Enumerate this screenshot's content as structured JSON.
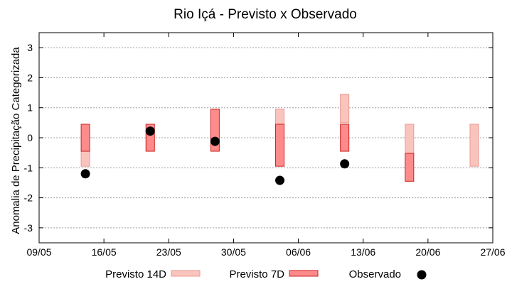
{
  "chart_data": {
    "type": "bar",
    "title": "Rio Içá - Previsto x Observado",
    "xlabel": "",
    "ylabel": "Anomalia de Precipitação Categorizada",
    "x_axis": {
      "type": "date",
      "range": [
        "2024-05-09",
        "2024-06-27"
      ],
      "tick_labels": [
        "09/05",
        "16/05",
        "23/05",
        "30/05",
        "06/06",
        "13/06",
        "20/06",
        "27/06"
      ]
    },
    "ylim": [
      -3.5,
      3.5
    ],
    "y_tick_labels": [
      "-3",
      "-2",
      "-1",
      "0",
      "1",
      "2",
      "3"
    ],
    "grid": true,
    "legend_position": "bottom",
    "series": [
      {
        "name": "Previsto 14D",
        "kind": "floating-bar",
        "color": "#f9c4bd",
        "edge": "#e99a90",
        "points": [
          {
            "x": "2024-05-14",
            "low": -0.95,
            "high": -0.45
          },
          {
            "x": "2024-06-04",
            "low": 0.45,
            "high": 0.95
          },
          {
            "x": "2024-06-11",
            "low": 0.5,
            "high": 1.45
          },
          {
            "x": "2024-06-18",
            "low": -0.55,
            "high": 0.45
          },
          {
            "x": "2024-06-25",
            "low": -0.95,
            "high": 0.45
          }
        ]
      },
      {
        "name": "Previsto 7D",
        "kind": "floating-bar",
        "color": "#fd8b8b",
        "edge": "#cc1f1f",
        "points": [
          {
            "x": "2024-05-14",
            "low": -0.45,
            "high": 0.45
          },
          {
            "x": "2024-05-21",
            "low": -0.45,
            "high": 0.45
          },
          {
            "x": "2024-05-28",
            "low": -0.45,
            "high": 0.95
          },
          {
            "x": "2024-06-04",
            "low": -0.95,
            "high": 0.45
          },
          {
            "x": "2024-06-11",
            "low": -0.45,
            "high": 0.45
          },
          {
            "x": "2024-06-18",
            "low": -1.45,
            "high": -0.52
          }
        ]
      },
      {
        "name": "Observado",
        "kind": "scatter",
        "color": "#000000",
        "points": [
          {
            "x": "2024-05-14",
            "y": -1.2
          },
          {
            "x": "2024-05-21",
            "y": 0.22
          },
          {
            "x": "2024-05-28",
            "y": -0.12
          },
          {
            "x": "2024-06-04",
            "y": -1.42
          },
          {
            "x": "2024-06-11",
            "y": -0.87
          }
        ]
      }
    ]
  }
}
